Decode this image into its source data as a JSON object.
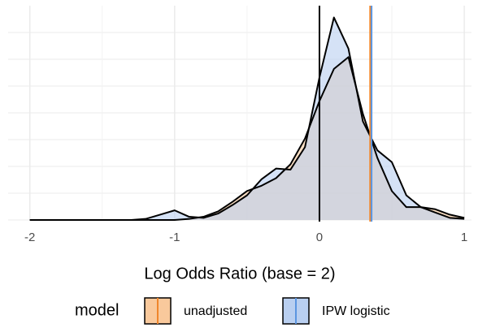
{
  "chart_data": {
    "type": "density",
    "x_label": "Log Odds Ratio (base = 2)",
    "x": [
      -2,
      -1.9,
      -1.8,
      -1.7,
      -1.6,
      -1.5,
      -1.4,
      -1.3,
      -1.2,
      -1.1,
      -1.0,
      -0.9,
      -0.8,
      -0.7,
      -0.6,
      -0.5,
      -0.4,
      -0.3,
      -0.2,
      -0.1,
      0,
      0.1,
      0.2,
      0.3,
      0.4,
      0.5,
      0.6,
      0.7,
      0.8,
      0.9,
      1.0
    ],
    "series": [
      {
        "name": "unadjusted",
        "color": "#f0862c",
        "fill": "#f9c99c",
        "vline": 0.35,
        "values": [
          0,
          0,
          0,
          0,
          0,
          0,
          0,
          0,
          0,
          0,
          0,
          0.01,
          0.03,
          0.08,
          0.17,
          0.27,
          0.32,
          0.39,
          0.52,
          0.76,
          1.11,
          1.41,
          1.52,
          0.99,
          0.58,
          0.27,
          0.12,
          0.12,
          0.1,
          0.05,
          0.02
        ]
      },
      {
        "name": "IPW logistic",
        "color": "#5b95e0",
        "fill": "#b9cff0",
        "vline": 0.36,
        "values": [
          0,
          0,
          0,
          0,
          0,
          0,
          0,
          0,
          0.01,
          0.05,
          0.09,
          0.03,
          0.02,
          0.06,
          0.14,
          0.23,
          0.38,
          0.48,
          0.47,
          0.68,
          1.33,
          1.89,
          1.6,
          0.92,
          0.65,
          0.54,
          0.23,
          0.12,
          0.07,
          0.02,
          0.01
        ]
      }
    ],
    "reference_line": 0,
    "xlim": [
      -2.15,
      1.05
    ],
    "xticks": [
      -2,
      -1,
      0,
      1
    ],
    "xminor": [
      -1.5,
      -0.5,
      0.5
    ],
    "ylim": [
      0,
      2
    ],
    "yticks": [
      0,
      0.25,
      0.5,
      0.75,
      1,
      1.25,
      1.5,
      1.75
    ],
    "grid": true,
    "legend_title": "model",
    "legend_position": "bottom"
  }
}
